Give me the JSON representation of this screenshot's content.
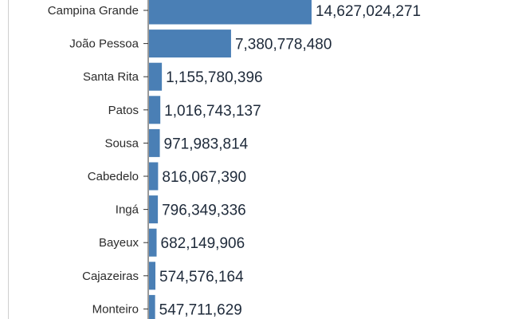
{
  "chart_data": {
    "type": "bar",
    "orientation": "horizontal",
    "categories": [
      "Campina Grande",
      "João Pessoa",
      "Santa Rita",
      "Patos",
      "Sousa",
      "Cabedelo",
      "Ingá",
      "Bayeux",
      "Cajazeiras",
      "Monteiro"
    ],
    "values": [
      14627024271,
      7380778480,
      1155780396,
      1016743137,
      971983814,
      816067390,
      796349336,
      682149906,
      574576164,
      547711629
    ],
    "value_labels": [
      "14,627,024,271",
      "7,380,778,480",
      "1,155,780,396",
      "1,016,743,137",
      "971,983,814",
      "816,067,390",
      "796,349,336",
      "682,149,906",
      "574,576,164",
      "547,711,629"
    ],
    "bar_color": "#4a7fb5",
    "label_color": "#1e2a3a",
    "title": "",
    "xlabel": "",
    "ylabel": ""
  }
}
